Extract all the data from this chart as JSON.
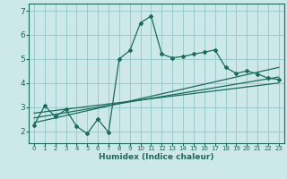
{
  "bg_color": "#cce8e8",
  "grid_color": "#99cccc",
  "line_color": "#1a6b5a",
  "xlabel": "Humidex (Indice chaleur)",
  "xlim": [
    -0.5,
    23.5
  ],
  "ylim": [
    1.5,
    7.3
  ],
  "yticks": [
    2,
    3,
    4,
    5,
    6,
    7
  ],
  "xticks": [
    0,
    1,
    2,
    3,
    4,
    5,
    6,
    7,
    8,
    9,
    10,
    11,
    12,
    13,
    14,
    15,
    16,
    17,
    18,
    19,
    20,
    21,
    22,
    23
  ],
  "main_x": [
    0,
    1,
    2,
    3,
    4,
    5,
    6,
    7,
    8,
    9,
    10,
    11,
    12,
    13,
    14,
    15,
    16,
    17,
    18,
    19,
    20,
    21,
    22,
    23
  ],
  "main_y": [
    2.25,
    3.05,
    2.6,
    2.9,
    2.2,
    1.9,
    2.5,
    1.95,
    5.0,
    5.35,
    6.5,
    6.78,
    5.2,
    5.05,
    5.1,
    5.2,
    5.28,
    5.38,
    4.65,
    4.4,
    4.5,
    4.38,
    4.2,
    4.15
  ],
  "line1_x": [
    0,
    23
  ],
  "line1_y": [
    2.35,
    4.65
  ],
  "line2_x": [
    0,
    23
  ],
  "line2_y": [
    2.55,
    4.25
  ],
  "line3_x": [
    0,
    23
  ],
  "line3_y": [
    2.75,
    4.0
  ]
}
